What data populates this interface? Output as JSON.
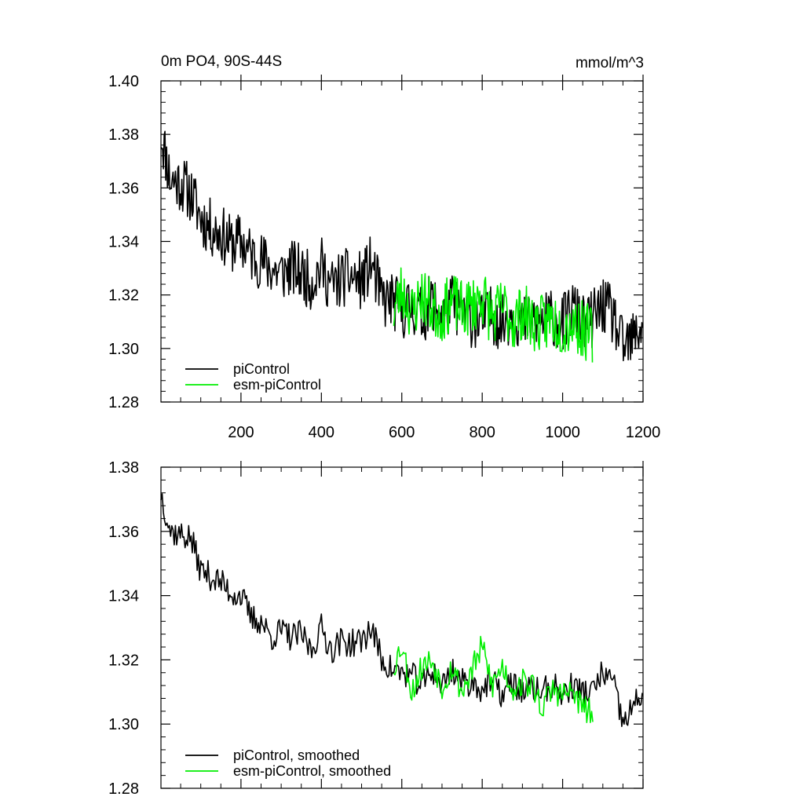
{
  "chart_data": [
    {
      "type": "line",
      "title_left": "0m PO4, 90S-44S",
      "title_right": "mmol/m^3",
      "xlim": [
        1,
        1200
      ],
      "ylim": [
        1.28,
        1.4
      ],
      "x_ticks": [
        200,
        400,
        600,
        800,
        1000,
        1200
      ],
      "x_tick_labels": [
        "200",
        "400",
        "600",
        "800",
        "1000",
        "1200"
      ],
      "y_ticks": [
        1.28,
        1.3,
        1.32,
        1.34,
        1.36,
        1.38,
        1.4
      ],
      "y_tick_labels": [
        "1.28",
        "1.30",
        "1.32",
        "1.34",
        "1.36",
        "1.38",
        "1.40"
      ],
      "legend_position": "bottom-left",
      "series": [
        {
          "name": "piControl",
          "color": "#000000",
          "x": [
            1,
            25,
            50,
            75,
            100,
            125,
            150,
            175,
            200,
            225,
            250,
            275,
            300,
            325,
            350,
            375,
            400,
            425,
            450,
            475,
            500,
            525,
            550,
            575,
            600,
            625,
            650,
            675,
            700,
            725,
            750,
            775,
            800,
            825,
            850,
            875,
            900,
            925,
            950,
            975,
            1000,
            1025,
            1050,
            1075,
            1100,
            1125,
            1150,
            1175,
            1200
          ],
          "y": [
            1.381,
            1.363,
            1.362,
            1.358,
            1.349,
            1.345,
            1.343,
            1.339,
            1.34,
            1.335,
            1.333,
            1.33,
            1.328,
            1.33,
            1.328,
            1.325,
            1.331,
            1.323,
            1.326,
            1.327,
            1.325,
            1.332,
            1.318,
            1.318,
            1.314,
            1.316,
            1.312,
            1.318,
            1.312,
            1.317,
            1.314,
            1.311,
            1.31,
            1.313,
            1.309,
            1.314,
            1.309,
            1.311,
            1.31,
            1.312,
            1.309,
            1.315,
            1.309,
            1.311,
            1.316,
            1.312,
            1.3,
            1.303,
            1.31
          ]
        },
        {
          "name": "esm-piControl",
          "color": "#00ee00",
          "x": [
            580,
            600,
            625,
            650,
            675,
            700,
            725,
            750,
            775,
            800,
            825,
            850,
            875,
            900,
            925,
            950,
            975,
            1000,
            1025,
            1050,
            1075
          ],
          "y": [
            1.314,
            1.322,
            1.313,
            1.32,
            1.315,
            1.313,
            1.318,
            1.314,
            1.316,
            1.32,
            1.311,
            1.316,
            1.31,
            1.314,
            1.31,
            1.309,
            1.311,
            1.308,
            1.31,
            1.307,
            1.305
          ]
        }
      ]
    },
    {
      "type": "line",
      "xlim": [
        1,
        1200
      ],
      "ylim": [
        1.28,
        1.38
      ],
      "y_ticks": [
        1.28,
        1.3,
        1.32,
        1.34,
        1.36,
        1.38
      ],
      "y_tick_labels": [
        "1.28",
        "1.30",
        "1.32",
        "1.34",
        "1.36",
        "1.38"
      ],
      "legend_position": "bottom-left",
      "series": [
        {
          "name": "piControl, smoothed",
          "color": "#000000",
          "x": [
            1,
            25,
            50,
            75,
            100,
            125,
            150,
            175,
            200,
            225,
            250,
            275,
            300,
            325,
            350,
            375,
            400,
            425,
            450,
            475,
            500,
            525,
            550,
            575,
            600,
            625,
            650,
            675,
            700,
            725,
            750,
            775,
            800,
            825,
            850,
            875,
            900,
            925,
            950,
            975,
            1000,
            1025,
            1050,
            1075,
            1100,
            1125,
            1150,
            1175,
            1200
          ],
          "y": [
            1.372,
            1.36,
            1.359,
            1.358,
            1.348,
            1.346,
            1.344,
            1.341,
            1.34,
            1.333,
            1.332,
            1.327,
            1.329,
            1.327,
            1.328,
            1.323,
            1.33,
            1.323,
            1.326,
            1.325,
            1.326,
            1.33,
            1.32,
            1.317,
            1.316,
            1.315,
            1.312,
            1.317,
            1.312,
            1.317,
            1.313,
            1.313,
            1.311,
            1.313,
            1.309,
            1.313,
            1.31,
            1.311,
            1.31,
            1.312,
            1.309,
            1.312,
            1.31,
            1.31,
            1.316,
            1.313,
            1.3,
            1.305,
            1.31
          ]
        },
        {
          "name": "esm-piControl, smoothed",
          "color": "#00ee00",
          "x": [
            580,
            600,
            625,
            650,
            675,
            700,
            725,
            750,
            775,
            800,
            825,
            850,
            875,
            900,
            925,
            950,
            975,
            1000,
            1025,
            1050,
            1075
          ],
          "y": [
            1.318,
            1.325,
            1.31,
            1.318,
            1.32,
            1.312,
            1.318,
            1.31,
            1.317,
            1.324,
            1.312,
            1.318,
            1.311,
            1.313,
            1.312,
            1.305,
            1.311,
            1.309,
            1.31,
            1.305,
            1.303
          ]
        }
      ]
    }
  ]
}
